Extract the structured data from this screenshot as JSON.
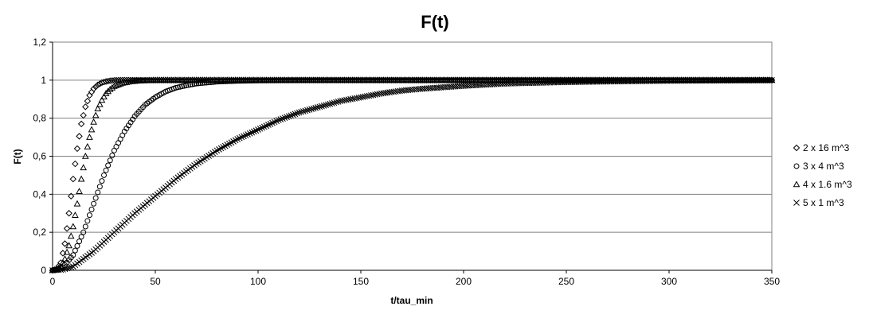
{
  "chart_data": {
    "type": "scatter",
    "title": "F(t)",
    "xlabel": "t/tau_min",
    "ylabel": "F(t)",
    "xlim": [
      0,
      350
    ],
    "ylim": [
      0,
      1.2
    ],
    "x_ticks": [
      0,
      50,
      100,
      150,
      200,
      250,
      300,
      350
    ],
    "x_tick_labels": [
      "0",
      "50",
      "100",
      "150",
      "200",
      "250",
      "300",
      "350"
    ],
    "y_ticks": [
      0,
      0.2,
      0.4,
      0.6,
      0.8,
      1,
      1.2
    ],
    "y_tick_labels": [
      "0",
      "0,2",
      "0,4",
      "0,6",
      "0,8",
      "1",
      "1,2"
    ],
    "grid": "horizontal",
    "legend_position": "right",
    "series": [
      {
        "name": "2 x 16 m^3",
        "marker": "diamond",
        "x": [
          0,
          2,
          4,
          6,
          8,
          10,
          12,
          14,
          16,
          18,
          20,
          22,
          24,
          26,
          28,
          30,
          34,
          40,
          50,
          60,
          80,
          100,
          150,
          200,
          250,
          300,
          350
        ],
        "y": [
          0,
          0.005,
          0.04,
          0.14,
          0.3,
          0.48,
          0.64,
          0.77,
          0.86,
          0.92,
          0.955,
          0.975,
          0.987,
          0.993,
          0.997,
          0.999,
          1,
          1,
          1,
          1,
          1,
          1,
          1,
          1,
          1,
          1,
          1
        ]
      },
      {
        "name": "3 x 4  m^3",
        "marker": "circle",
        "x": [
          0,
          5,
          10,
          15,
          20,
          25,
          30,
          35,
          40,
          45,
          50,
          55,
          60,
          65,
          70,
          80,
          90,
          100,
          120,
          150,
          200,
          250,
          300,
          350
        ],
        "y": [
          0,
          0.015,
          0.08,
          0.2,
          0.35,
          0.5,
          0.63,
          0.73,
          0.81,
          0.87,
          0.91,
          0.94,
          0.96,
          0.972,
          0.982,
          0.992,
          0.996,
          0.998,
          1,
          1,
          1,
          1,
          1,
          1
        ]
      },
      {
        "name": "4 x 1.6 m^3",
        "marker": "triangle",
        "x": [
          0,
          2,
          4,
          6,
          8,
          10,
          12,
          14,
          16,
          18,
          20,
          22,
          24,
          26,
          28,
          30,
          34,
          38,
          42,
          50,
          60,
          80,
          100,
          150,
          200,
          250,
          300,
          350
        ],
        "y": [
          0,
          0.005,
          0.02,
          0.06,
          0.13,
          0.23,
          0.35,
          0.48,
          0.6,
          0.7,
          0.78,
          0.85,
          0.895,
          0.93,
          0.952,
          0.968,
          0.985,
          0.993,
          0.997,
          1,
          1,
          1,
          1,
          1,
          1,
          1,
          1,
          1
        ]
      },
      {
        "name": "5 x 1  m^3",
        "marker": "cross",
        "x": [
          0,
          5,
          10,
          20,
          30,
          40,
          50,
          60,
          70,
          80,
          90,
          100,
          110,
          120,
          130,
          140,
          150,
          160,
          170,
          180,
          200,
          220,
          250,
          300,
          350
        ],
        "y": [
          0,
          0.004,
          0.02,
          0.1,
          0.2,
          0.3,
          0.39,
          0.48,
          0.56,
          0.63,
          0.69,
          0.74,
          0.79,
          0.83,
          0.86,
          0.89,
          0.91,
          0.93,
          0.945,
          0.955,
          0.97,
          0.982,
          0.99,
          0.997,
          1
        ]
      }
    ]
  }
}
